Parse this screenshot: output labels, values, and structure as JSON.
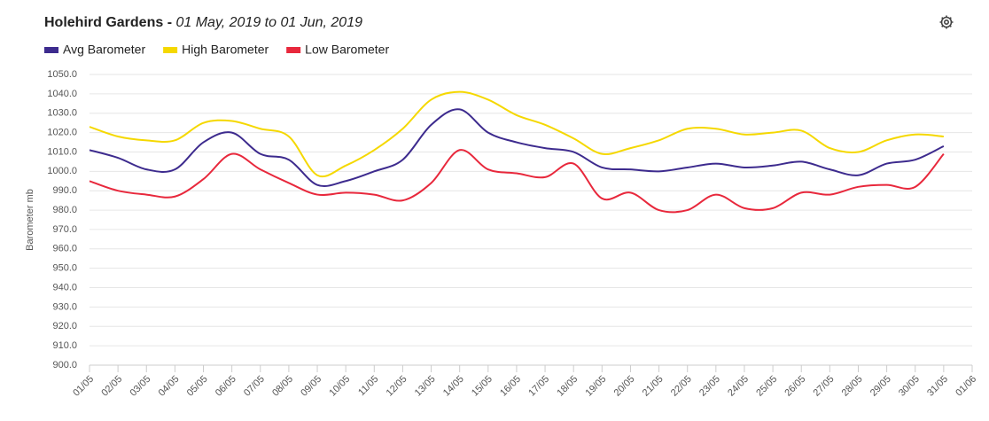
{
  "chart_data": {
    "type": "line",
    "title": "Holehird Gardens - ",
    "subtitle": "01 May, 2019 to 01 Jun, 2019",
    "y_label": "Barometer mb",
    "categories": [
      "01/05",
      "02/05",
      "03/05",
      "04/05",
      "05/05",
      "06/05",
      "07/05",
      "08/05",
      "09/05",
      "10/05",
      "11/05",
      "12/05",
      "13/05",
      "14/05",
      "15/05",
      "16/05",
      "17/05",
      "18/05",
      "19/05",
      "20/05",
      "21/05",
      "22/05",
      "23/05",
      "24/05",
      "25/05",
      "26/05",
      "27/05",
      "28/05",
      "29/05",
      "30/05",
      "31/05",
      "01/06"
    ],
    "series": [
      {
        "name": "Avg Barometer",
        "color": "#3d2b8e",
        "values": [
          1011,
          1007,
          1001,
          1001,
          1015,
          1020,
          1009,
          1006,
          993,
          995,
          1000,
          1006,
          1024,
          1032,
          1020,
          1015,
          1012,
          1010,
          1002,
          1001,
          1000,
          1002,
          1004,
          1002,
          1003,
          1005,
          1001,
          998,
          1004,
          1006,
          1013,
          null
        ]
      },
      {
        "name": "High Barometer",
        "color": "#f5d800",
        "values": [
          1023,
          1018,
          1016,
          1016,
          1025,
          1026,
          1022,
          1018,
          998,
          1003,
          1011,
          1022,
          1037,
          1041,
          1037,
          1029,
          1024,
          1017,
          1009,
          1012,
          1016,
          1022,
          1022,
          1019,
          1020,
          1021,
          1012,
          1010,
          1016,
          1019,
          1018,
          null
        ]
      },
      {
        "name": "Low Barometer",
        "color": "#e8283c",
        "values": [
          995,
          990,
          988,
          987,
          996,
          1009,
          1001,
          994,
          988,
          989,
          988,
          985,
          994,
          1011,
          1001,
          999,
          997,
          1004,
          986,
          989,
          980,
          980,
          988,
          981,
          981,
          989,
          988,
          992,
          993,
          992,
          1009,
          null
        ]
      }
    ],
    "ylim": [
      900,
      1050
    ],
    "yticks": [
      {
        "value": 900,
        "label": "900.0"
      },
      {
        "value": 910,
        "label": "910.0"
      },
      {
        "value": 920,
        "label": "920.0"
      },
      {
        "value": 930,
        "label": "930.0"
      },
      {
        "value": 940,
        "label": "940.0"
      },
      {
        "value": 950,
        "label": "950.0"
      },
      {
        "value": 960,
        "label": "960.0"
      },
      {
        "value": 970,
        "label": "970.0"
      },
      {
        "value": 980,
        "label": "980.0"
      },
      {
        "value": 990,
        "label": "990.0"
      },
      {
        "value": 1000,
        "label": "1000.0"
      },
      {
        "value": 1010,
        "label": "1010.0"
      },
      {
        "value": 1020,
        "label": "1020.0"
      },
      {
        "value": 1030,
        "label": "1030.0"
      },
      {
        "value": 1040,
        "label": "1040.0"
      },
      {
        "value": 1050,
        "label": "1050.0"
      }
    ],
    "grid": true,
    "legend": "top-left"
  }
}
